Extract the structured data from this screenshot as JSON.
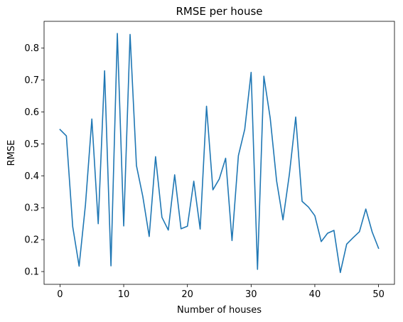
{
  "chart_data": {
    "type": "line",
    "title": "RMSE per house",
    "xlabel": "Number of houses",
    "ylabel": "RMSE",
    "xlim": [
      -2.5,
      52.5
    ],
    "ylim": [
      0.06,
      0.884
    ],
    "xticks": [
      0,
      10,
      20,
      30,
      40,
      50
    ],
    "xtick_labels": [
      "0",
      "10",
      "20",
      "30",
      "40",
      "50"
    ],
    "yticks": [
      0.1,
      0.2,
      0.3,
      0.4,
      0.5,
      0.6,
      0.7,
      0.8
    ],
    "ytick_labels": [
      "0.1",
      "0.2",
      "0.3",
      "0.4",
      "0.5",
      "0.6",
      "0.7",
      "0.8"
    ],
    "grid": false,
    "series": [
      {
        "color": "#1f77b4",
        "x": [
          0,
          1,
          2,
          3,
          4,
          5,
          6,
          7,
          8,
          9,
          10,
          11,
          12,
          13,
          14,
          15,
          16,
          17,
          18,
          19,
          20,
          21,
          22,
          23,
          24,
          25,
          26,
          27,
          28,
          29,
          30,
          31,
          32,
          33,
          34,
          35,
          36,
          37,
          38,
          39,
          40,
          41,
          42,
          43,
          44,
          45,
          46,
          47,
          48,
          49,
          50
        ],
        "y": [
          0.545,
          0.525,
          0.24,
          0.117,
          0.31,
          0.578,
          0.25,
          0.729,
          0.118,
          0.846,
          0.243,
          0.843,
          0.432,
          0.335,
          0.21,
          0.46,
          0.27,
          0.23,
          0.403,
          0.234,
          0.242,
          0.383,
          0.233,
          0.618,
          0.356,
          0.39,
          0.455,
          0.197,
          0.463,
          0.546,
          0.724,
          0.107,
          0.712,
          0.58,
          0.384,
          0.262,
          0.404,
          0.584,
          0.32,
          0.302,
          0.275,
          0.194,
          0.22,
          0.229,
          0.097,
          0.186,
          0.206,
          0.225,
          0.296,
          0.224,
          0.173
        ]
      }
    ]
  }
}
